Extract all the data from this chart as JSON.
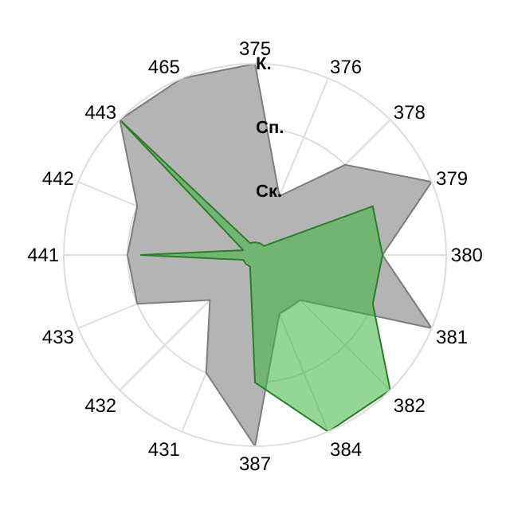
{
  "chart_data": {
    "type": "radar",
    "categories": [
      "375",
      "376",
      "378",
      "379",
      "380",
      "381",
      "382",
      "384",
      "387",
      "431",
      "432",
      "433",
      "441",
      "442",
      "443",
      "465"
    ],
    "series": [
      {
        "color": "#b4b4b4",
        "values": [
          3,
          1,
          2,
          3,
          2,
          3,
          1,
          1,
          3,
          2,
          1,
          2,
          2,
          2,
          3,
          3
        ]
      },
      {
        "color": "#3cb43c",
        "values": [
          0.2,
          0.2,
          0.2,
          2,
          2,
          2,
          3,
          3,
          2,
          0.2,
          0.2,
          0.2,
          1.8,
          0.2,
          3,
          0.2
        ]
      }
    ],
    "ylim": [
      0,
      3
    ],
    "yticks": [
      {
        "value": 1,
        "label": "Ск."
      },
      {
        "value": 2,
        "label": "Сп."
      },
      {
        "value": 3,
        "label": "К."
      }
    ],
    "grid": true
  }
}
